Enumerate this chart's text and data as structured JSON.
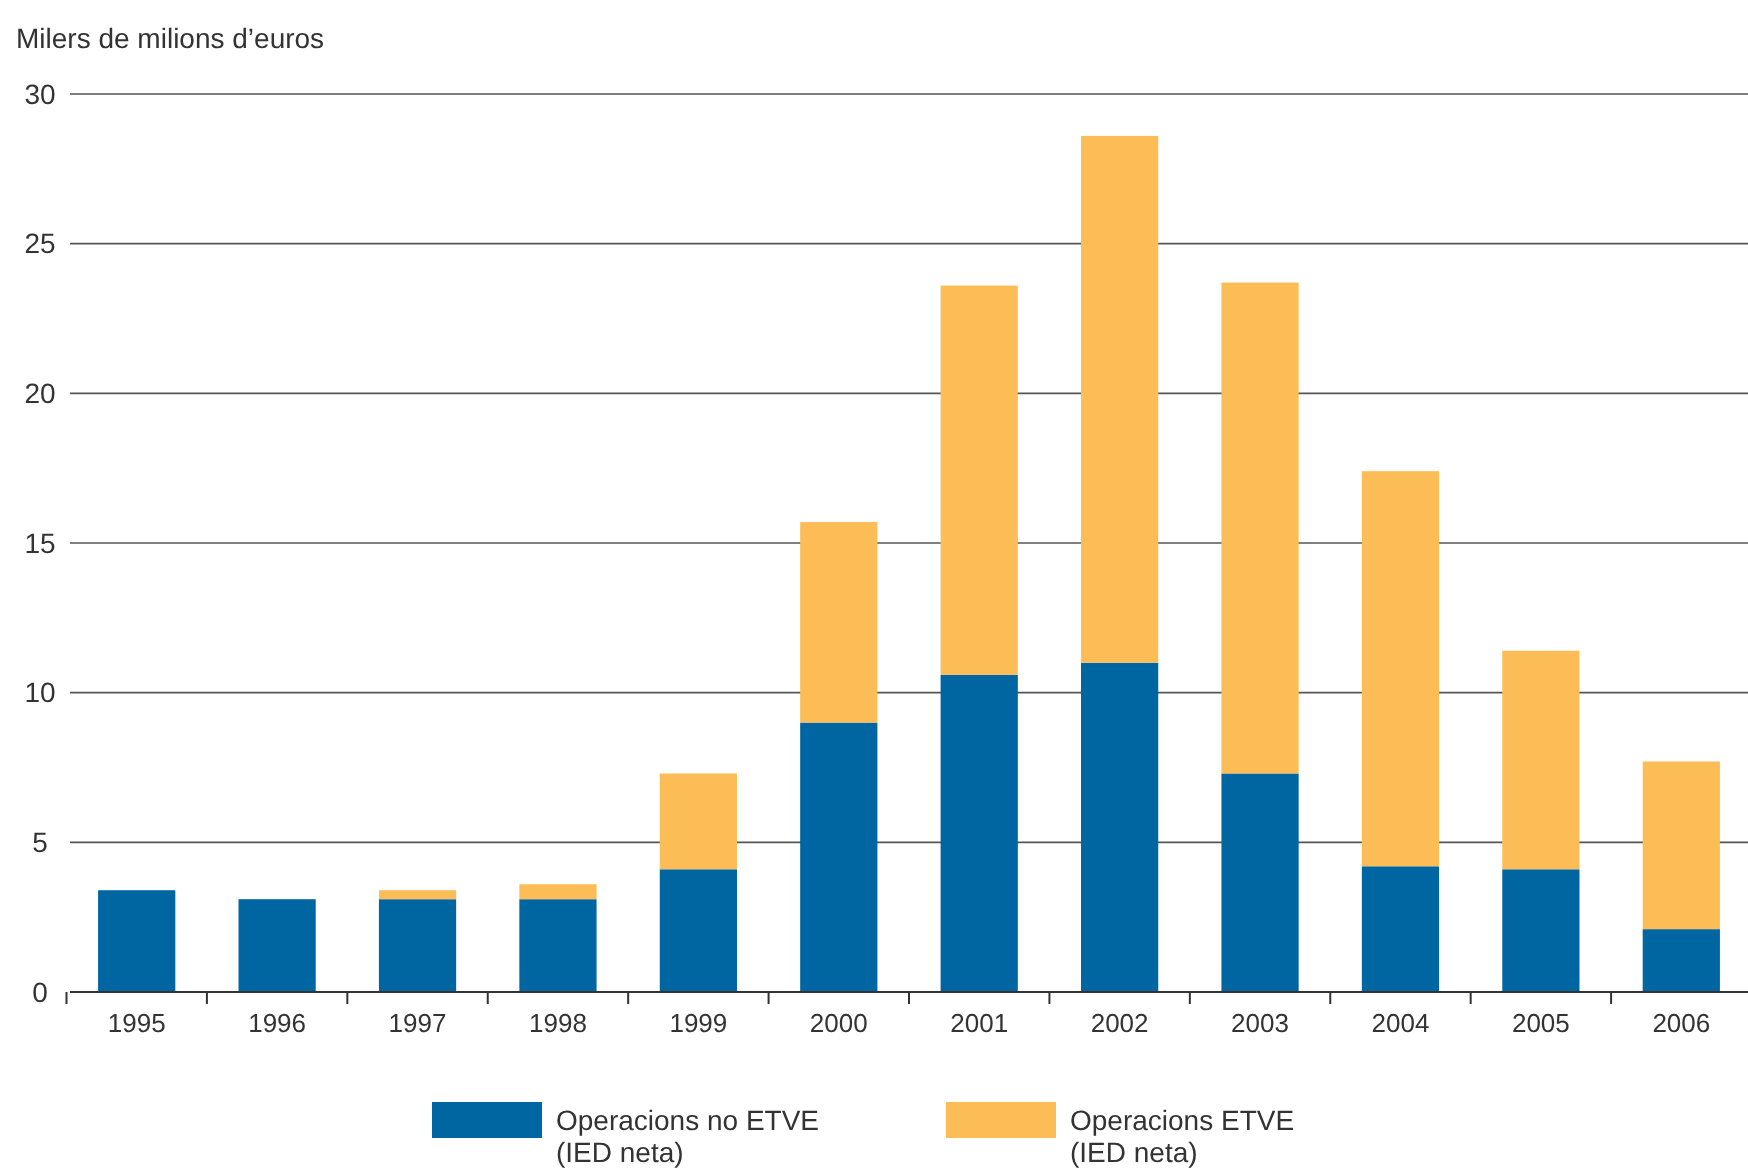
{
  "chart_data": {
    "type": "bar",
    "stacked": true,
    "ylabel": "Milers de milions d’euros",
    "categories": [
      "1995",
      "1996",
      "1997",
      "1998",
      "1999",
      "2000",
      "2001",
      "2002",
      "2003",
      "2004",
      "2005",
      "2006"
    ],
    "series": [
      {
        "name": "Operacions no ETVE\n(IED neta)",
        "color": "#0066a1",
        "values": [
          3.4,
          3.1,
          3.1,
          3.1,
          4.1,
          9.0,
          10.6,
          11.0,
          7.3,
          4.2,
          4.1,
          2.1
        ]
      },
      {
        "name": "Operacions ETVE\n(IED neta)",
        "color": "#fdbd56",
        "values": [
          0,
          0,
          0.3,
          0.5,
          3.2,
          6.7,
          13.0,
          17.6,
          16.4,
          13.2,
          7.3,
          5.6
        ]
      }
    ],
    "ylim": [
      0,
      30
    ],
    "yticks": [
      0,
      5,
      10,
      15,
      20,
      25,
      30
    ],
    "grid": "y",
    "legend": "bottom"
  }
}
